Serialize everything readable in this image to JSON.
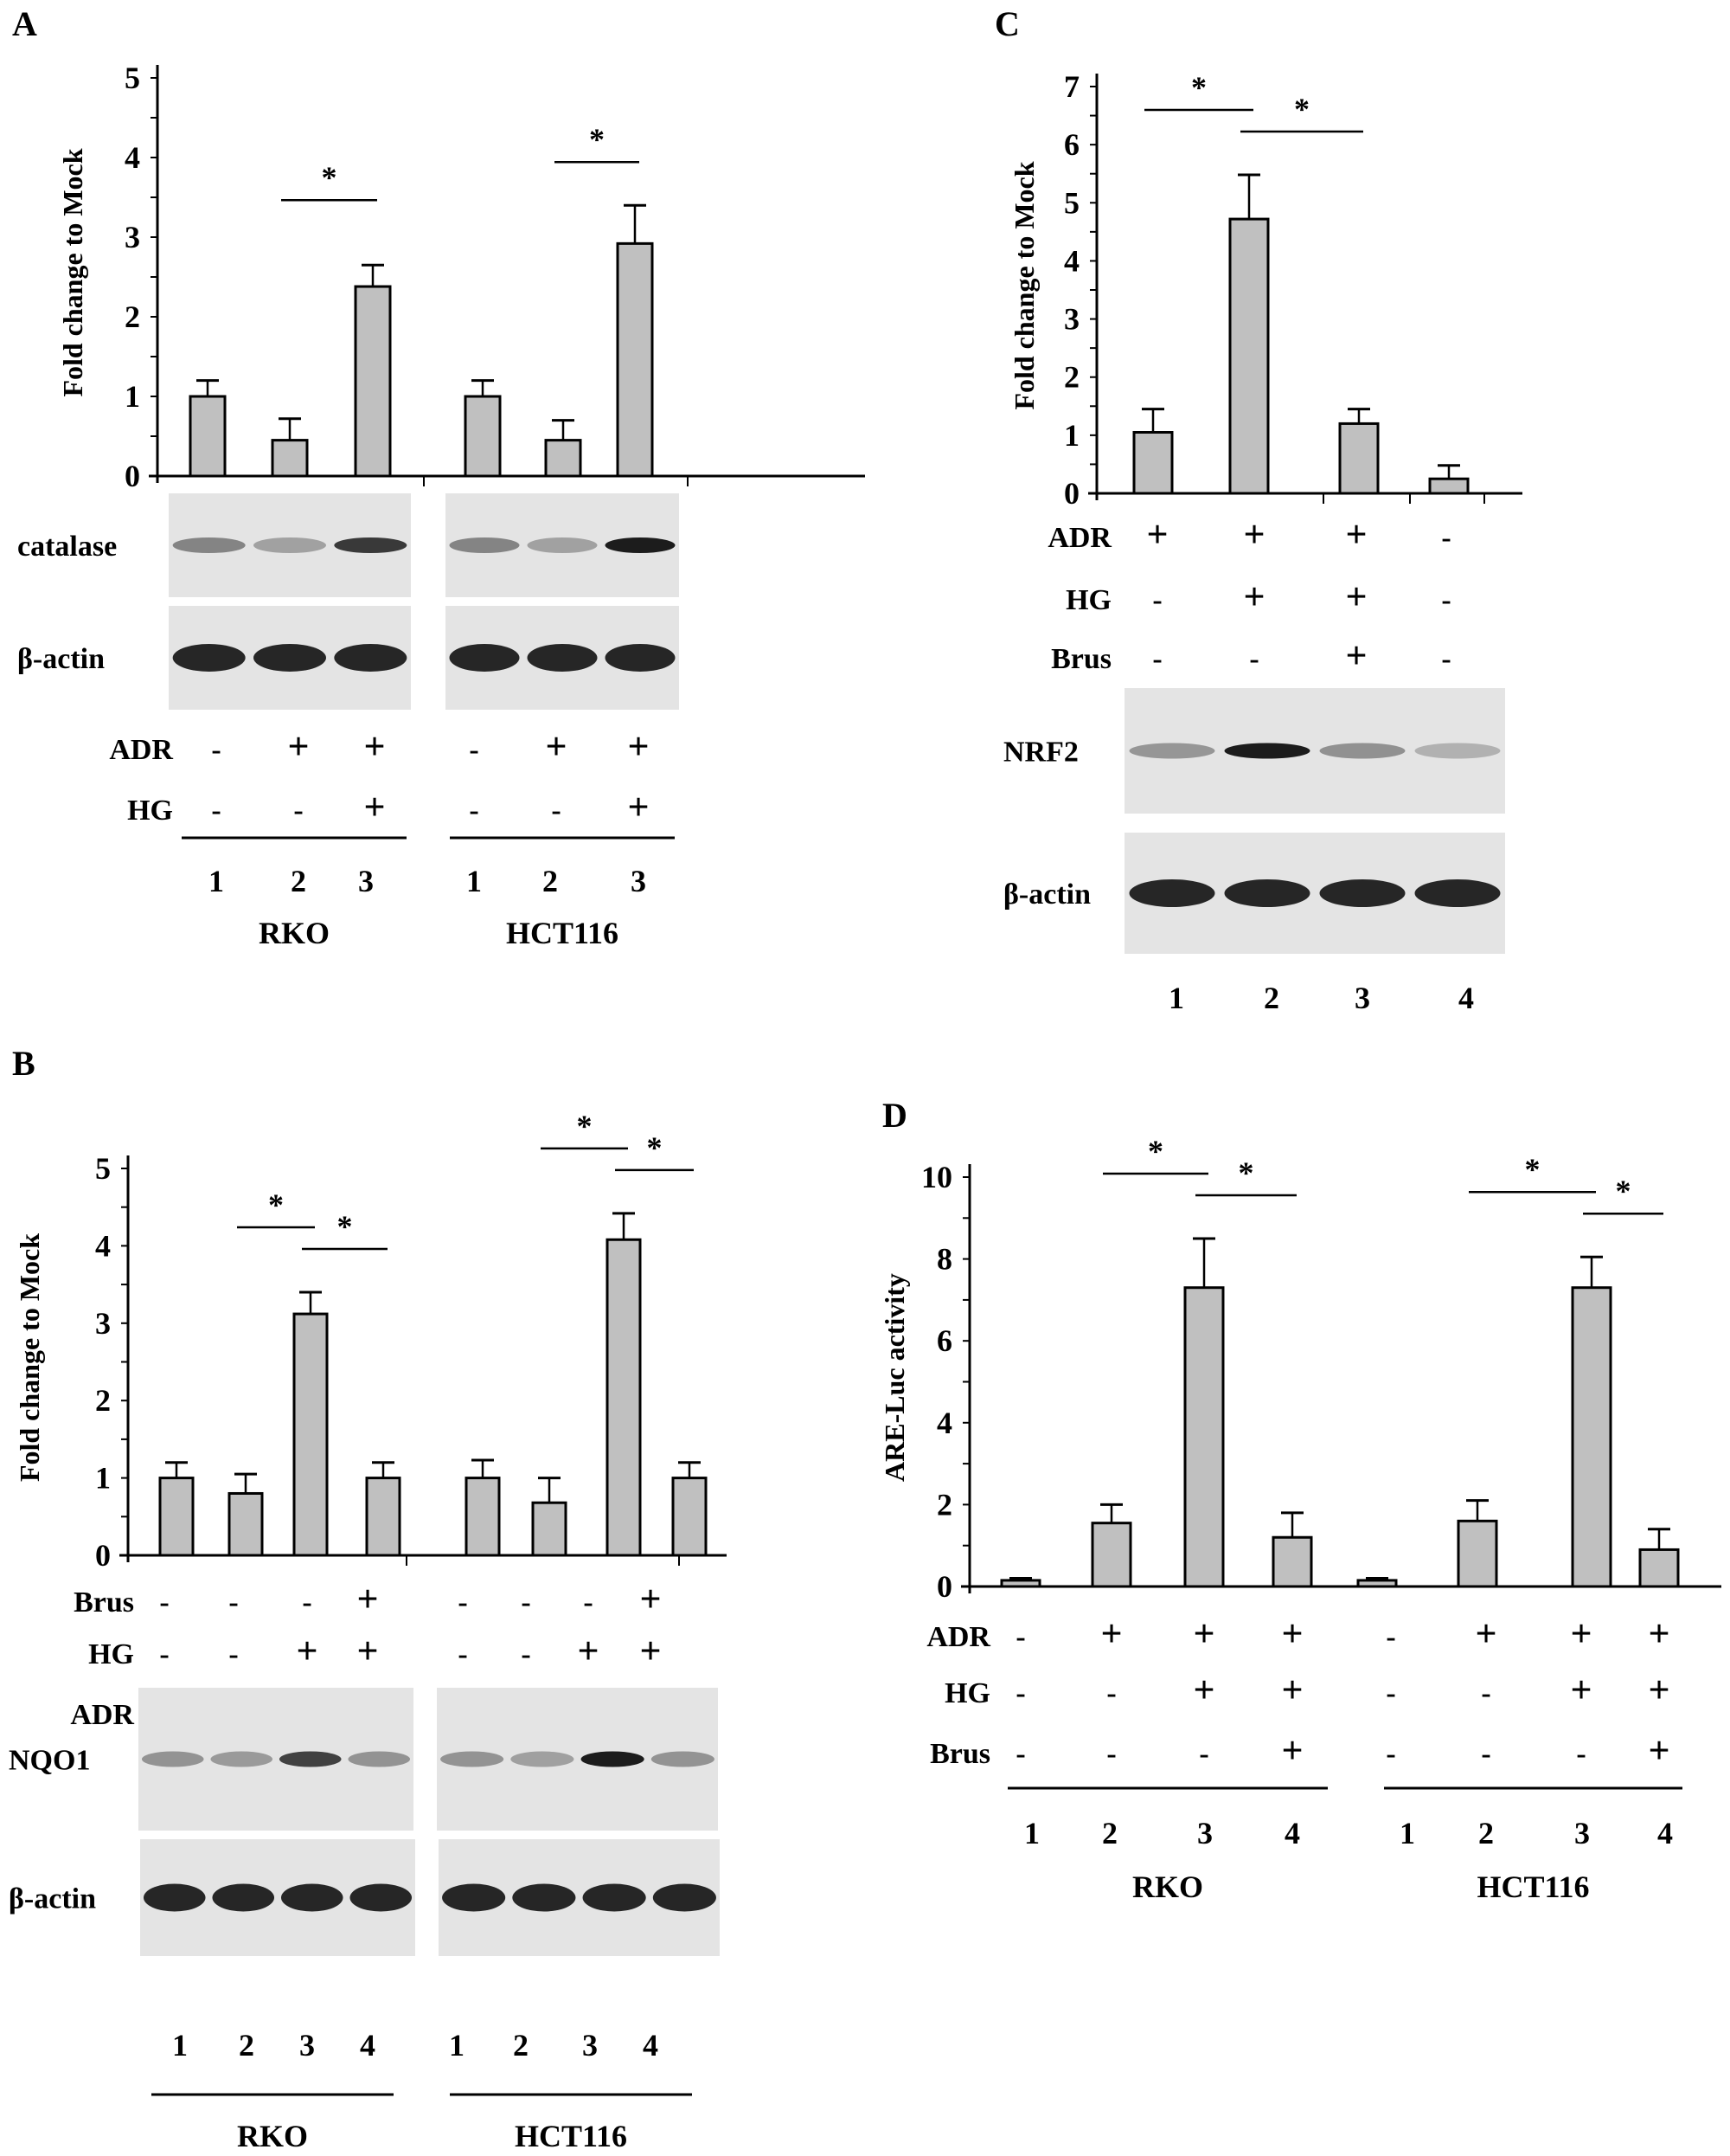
{
  "panels": {
    "A": {
      "label": "A"
    },
    "B": {
      "label": "B"
    },
    "C": {
      "label": "C"
    },
    "D": {
      "label": "D"
    }
  },
  "colors": {
    "bar_fill": "#c0c0c0",
    "bar_stroke": "#000000",
    "blot_bg": "#e4e4e4",
    "band": "#111111"
  },
  "chart_data": [
    {
      "panel": "A",
      "type": "bar",
      "title": "",
      "ylabel": "Fold change to Mock",
      "ylim": [
        0,
        5
      ],
      "yticks": [
        0,
        1,
        2,
        3,
        4,
        5
      ],
      "groups": [
        "RKO",
        "HCT116"
      ],
      "categories": [
        "1",
        "2",
        "3",
        "1",
        "2",
        "3"
      ],
      "values": [
        1.0,
        0.45,
        2.38,
        1.0,
        0.45,
        2.92
      ],
      "error_upper": [
        1.2,
        0.72,
        2.65,
        1.2,
        0.7,
        3.4
      ],
      "significance": [
        {
          "from": 1,
          "to": 2,
          "label": "*"
        },
        {
          "from": 4,
          "to": 5,
          "label": "*"
        }
      ],
      "treatments": [
        {
          "name": "ADR",
          "values": [
            "-",
            "+",
            "+",
            "-",
            "+",
            "+"
          ]
        },
        {
          "name": "HG",
          "values": [
            "-",
            "-",
            "+",
            "-",
            "-",
            "+"
          ]
        }
      ],
      "blots": [
        "catalase",
        "β-actin"
      ],
      "lanes": [
        "1",
        "2",
        "3",
        "1",
        "2",
        "3"
      ]
    },
    {
      "panel": "B",
      "type": "bar",
      "ylabel": "Fold change to Mock",
      "ylim": [
        0,
        5
      ],
      "yticks": [
        0,
        1,
        2,
        3,
        4,
        5
      ],
      "groups": [
        "RKO",
        "HCT116"
      ],
      "categories": [
        "1",
        "2",
        "3",
        "4",
        "1",
        "2",
        "3",
        "4"
      ],
      "values": [
        1.0,
        0.8,
        3.12,
        1.0,
        1.0,
        0.68,
        4.08,
        1.0
      ],
      "error_upper": [
        1.2,
        1.05,
        3.4,
        1.2,
        1.23,
        1.0,
        4.42,
        1.2
      ],
      "significance": [
        {
          "from": 1,
          "to": 2,
          "label": "*"
        },
        {
          "from": 2,
          "to": 3,
          "label": "*"
        },
        {
          "from": 5,
          "to": 6,
          "label": "*"
        },
        {
          "from": 6,
          "to": 7,
          "label": "*"
        }
      ],
      "treatments": [
        {
          "name": "Brus",
          "values": [
            "-",
            "-",
            "-",
            "+",
            "-",
            "-",
            "-",
            "+"
          ]
        },
        {
          "name": "HG",
          "values": [
            "-",
            "-",
            "+",
            "+",
            "-",
            "-",
            "+",
            "+"
          ]
        },
        {
          "name": "ADR",
          "values": [
            "-",
            "+",
            "+",
            "+",
            "-",
            "+",
            "+",
            "+"
          ]
        }
      ],
      "blots": [
        "NQO1",
        "β-actin"
      ],
      "lanes": [
        "1",
        "2",
        "3",
        "4",
        "1",
        "2",
        "3",
        "4"
      ]
    },
    {
      "panel": "C",
      "type": "bar",
      "ylabel": "Fold change to Mock",
      "ylim": [
        0,
        7
      ],
      "yticks": [
        0,
        1,
        2,
        3,
        4,
        5,
        6,
        7
      ],
      "categories": [
        "1",
        "2",
        "3",
        "4"
      ],
      "values": [
        1.05,
        4.72,
        1.2,
        0.25
      ],
      "error_upper": [
        1.45,
        5.48,
        1.45,
        0.48
      ],
      "significance": [
        {
          "from": 0,
          "to": 1,
          "label": "*"
        },
        {
          "from": 1,
          "to": 2,
          "label": "*"
        }
      ],
      "treatments": [
        {
          "name": "ADR",
          "values": [
            "+",
            "+",
            "+",
            "-"
          ]
        },
        {
          "name": "HG",
          "values": [
            "-",
            "+",
            "+",
            "-"
          ]
        },
        {
          "name": "Brus",
          "values": [
            "-",
            "-",
            "+",
            "-"
          ]
        }
      ],
      "blots": [
        "NRF2",
        "β-actin"
      ],
      "lanes": [
        "1",
        "2",
        "3",
        "4"
      ]
    },
    {
      "panel": "D",
      "type": "bar",
      "ylabel": "ARE-Luc activity",
      "ylim": [
        0,
        10
      ],
      "yticks": [
        0,
        2,
        4,
        6,
        8,
        10
      ],
      "groups": [
        "RKO",
        "HCT116"
      ],
      "categories": [
        "1",
        "2",
        "3",
        "4",
        "1",
        "2",
        "3",
        "4"
      ],
      "values": [
        0.15,
        1.55,
        7.3,
        1.2,
        0.15,
        1.6,
        7.3,
        0.9
      ],
      "error_upper": [
        0.2,
        2.0,
        8.5,
        1.8,
        0.2,
        2.1,
        8.05,
        1.4
      ],
      "significance": [
        {
          "from": 1,
          "to": 2,
          "label": "*"
        },
        {
          "from": 2,
          "to": 3,
          "label": "*"
        },
        {
          "from": 5,
          "to": 6,
          "label": "*"
        },
        {
          "from": 6,
          "to": 7,
          "label": "*"
        }
      ],
      "treatments": [
        {
          "name": "ADR",
          "values": [
            "-",
            "+",
            "+",
            "+",
            "-",
            "+",
            "+",
            "+"
          ]
        },
        {
          "name": "HG",
          "values": [
            "-",
            "-",
            "+",
            "+",
            "-",
            "-",
            "+",
            "+"
          ]
        },
        {
          "name": "Brus",
          "values": [
            "-",
            "-",
            "-",
            "+",
            "-",
            "-",
            "-",
            "+"
          ]
        }
      ],
      "lanes": [
        "1",
        "2",
        "3",
        "4",
        "1",
        "2",
        "3",
        "4"
      ]
    }
  ]
}
